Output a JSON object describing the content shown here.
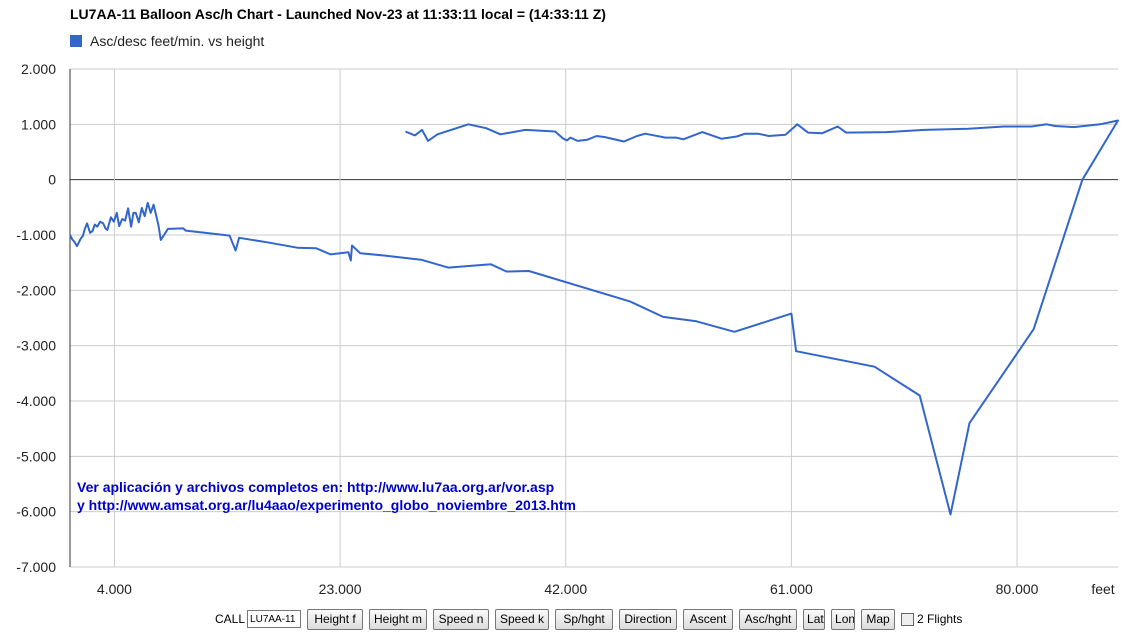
{
  "title": "LU7AA-11 Balloon Asc/h Chart - Launched Nov-23 at 11:33:11 local = (14:33:11 Z)",
  "note": {
    "line1": "Ver aplicación y archivos completos en: http://www.lu7aa.org.ar/vor.asp",
    "line2": "y http://www.amsat.org.ar/lu4aao/experimento_globo_noviembre_2013.htm"
  },
  "controls": {
    "call_label": "CALL",
    "call_value": "LU7AA-11",
    "buttons": [
      "Height f",
      "Height m",
      "Speed n",
      "Speed k",
      "Sp/hght",
      "Direction",
      "Ascent",
      "Asc/hght",
      "Lat",
      "Lon",
      "Map"
    ],
    "checkbox_label": "2 Flights"
  },
  "colors": {
    "series": "#3366cc",
    "grid": "#cccccc",
    "axis": "#333333",
    "note": "#0000cc"
  },
  "chart_data": {
    "type": "line",
    "title": "LU7AA-11 Balloon Asc/h Chart - Launched Nov-23 at 11:33:11 local = (14:33:11 Z)",
    "xlabel": "feet",
    "ylabel": "",
    "xlim": [
      258,
      88500
    ],
    "ylim": [
      -7000,
      2000
    ],
    "x_ticks": [
      4000,
      23000,
      42000,
      61000,
      80000
    ],
    "x_tick_labels": [
      "4.000",
      "23.000",
      "42.000",
      "61.000",
      "80.000"
    ],
    "y_ticks": [
      2000,
      1000,
      0,
      -1000,
      -2000,
      -3000,
      -4000,
      -5000,
      -6000,
      -7000
    ],
    "y_tick_labels": [
      "2.000",
      "1.000",
      "0",
      "-1.000",
      "-2.000",
      "-3.000",
      "-4.000",
      "-5.000",
      "-6.000",
      "-7.000"
    ],
    "grid": true,
    "legend": {
      "position": "top-left",
      "entries": [
        "Asc/desc feet/min. vs height"
      ]
    },
    "series": [
      {
        "name": "Asc/desc feet/min. vs height",
        "points": [
          [
            28500,
            870
          ],
          [
            29300,
            800
          ],
          [
            29900,
            900
          ],
          [
            30400,
            700
          ],
          [
            31200,
            820
          ],
          [
            33800,
            1000
          ],
          [
            35300,
            930
          ],
          [
            36500,
            820
          ],
          [
            38600,
            900
          ],
          [
            41100,
            870
          ],
          [
            41800,
            740
          ],
          [
            42100,
            710
          ],
          [
            42400,
            760
          ],
          [
            43000,
            700
          ],
          [
            43800,
            720
          ],
          [
            44600,
            790
          ],
          [
            45300,
            770
          ],
          [
            46900,
            690
          ],
          [
            48000,
            790
          ],
          [
            48700,
            830
          ],
          [
            50400,
            760
          ],
          [
            51300,
            760
          ],
          [
            51900,
            730
          ],
          [
            53500,
            860
          ],
          [
            55100,
            740
          ],
          [
            56400,
            780
          ],
          [
            57100,
            830
          ],
          [
            58200,
            830
          ],
          [
            59100,
            790
          ],
          [
            60500,
            810
          ],
          [
            61500,
            1000
          ],
          [
            62400,
            850
          ],
          [
            63600,
            840
          ],
          [
            64900,
            960
          ],
          [
            65600,
            850
          ],
          [
            69000,
            860
          ],
          [
            72200,
            900
          ],
          [
            75900,
            920
          ],
          [
            78900,
            960
          ],
          [
            81200,
            960
          ],
          [
            82500,
            1000
          ],
          [
            83200,
            970
          ],
          [
            84800,
            950
          ],
          [
            87000,
            1000
          ],
          [
            88500,
            1070
          ],
          [
            85500,
            0
          ],
          [
            81400,
            -2700
          ],
          [
            76000,
            -4400
          ],
          [
            74400,
            -6050
          ],
          [
            71800,
            -3900
          ],
          [
            68000,
            -3380
          ],
          [
            61400,
            -3100
          ],
          [
            61000,
            -2420
          ],
          [
            56200,
            -2750
          ],
          [
            53000,
            -2560
          ],
          [
            50200,
            -2480
          ],
          [
            47400,
            -2200
          ],
          [
            38900,
            -1650
          ],
          [
            37000,
            -1660
          ],
          [
            35700,
            -1530
          ],
          [
            32100,
            -1590
          ],
          [
            29900,
            -1450
          ],
          [
            26700,
            -1370
          ],
          [
            24700,
            -1330
          ],
          [
            24000,
            -1190
          ],
          [
            23900,
            -1460
          ],
          [
            23700,
            -1310
          ],
          [
            22200,
            -1350
          ],
          [
            21000,
            -1240
          ],
          [
            19400,
            -1230
          ],
          [
            16800,
            -1130
          ],
          [
            14500,
            -1050
          ],
          [
            14200,
            -1280
          ],
          [
            13700,
            -1010
          ],
          [
            11600,
            -960
          ],
          [
            10000,
            -920
          ],
          [
            9800,
            -880
          ],
          [
            8500,
            -890
          ],
          [
            7900,
            -1090
          ],
          [
            7700,
            -820
          ],
          [
            7300,
            -450
          ],
          [
            7050,
            -600
          ],
          [
            6800,
            -420
          ],
          [
            6550,
            -660
          ],
          [
            6300,
            -510
          ],
          [
            6050,
            -770
          ],
          [
            5800,
            -600
          ],
          [
            5600,
            -600
          ],
          [
            5400,
            -850
          ],
          [
            5150,
            -520
          ],
          [
            4900,
            -740
          ],
          [
            4650,
            -710
          ],
          [
            4400,
            -840
          ],
          [
            4200,
            -600
          ],
          [
            3950,
            -760
          ],
          [
            3700,
            -680
          ],
          [
            3400,
            -910
          ],
          [
            3250,
            -880
          ],
          [
            3050,
            -790
          ],
          [
            2800,
            -760
          ],
          [
            2550,
            -850
          ],
          [
            2350,
            -810
          ],
          [
            2150,
            -930
          ],
          [
            1950,
            -960
          ],
          [
            1700,
            -790
          ],
          [
            1500,
            -890
          ],
          [
            1350,
            -1010
          ],
          [
            1150,
            -1070
          ],
          [
            850,
            -1200
          ],
          [
            650,
            -1130
          ],
          [
            450,
            -1080
          ],
          [
            258,
            -1000
          ]
        ]
      }
    ]
  }
}
